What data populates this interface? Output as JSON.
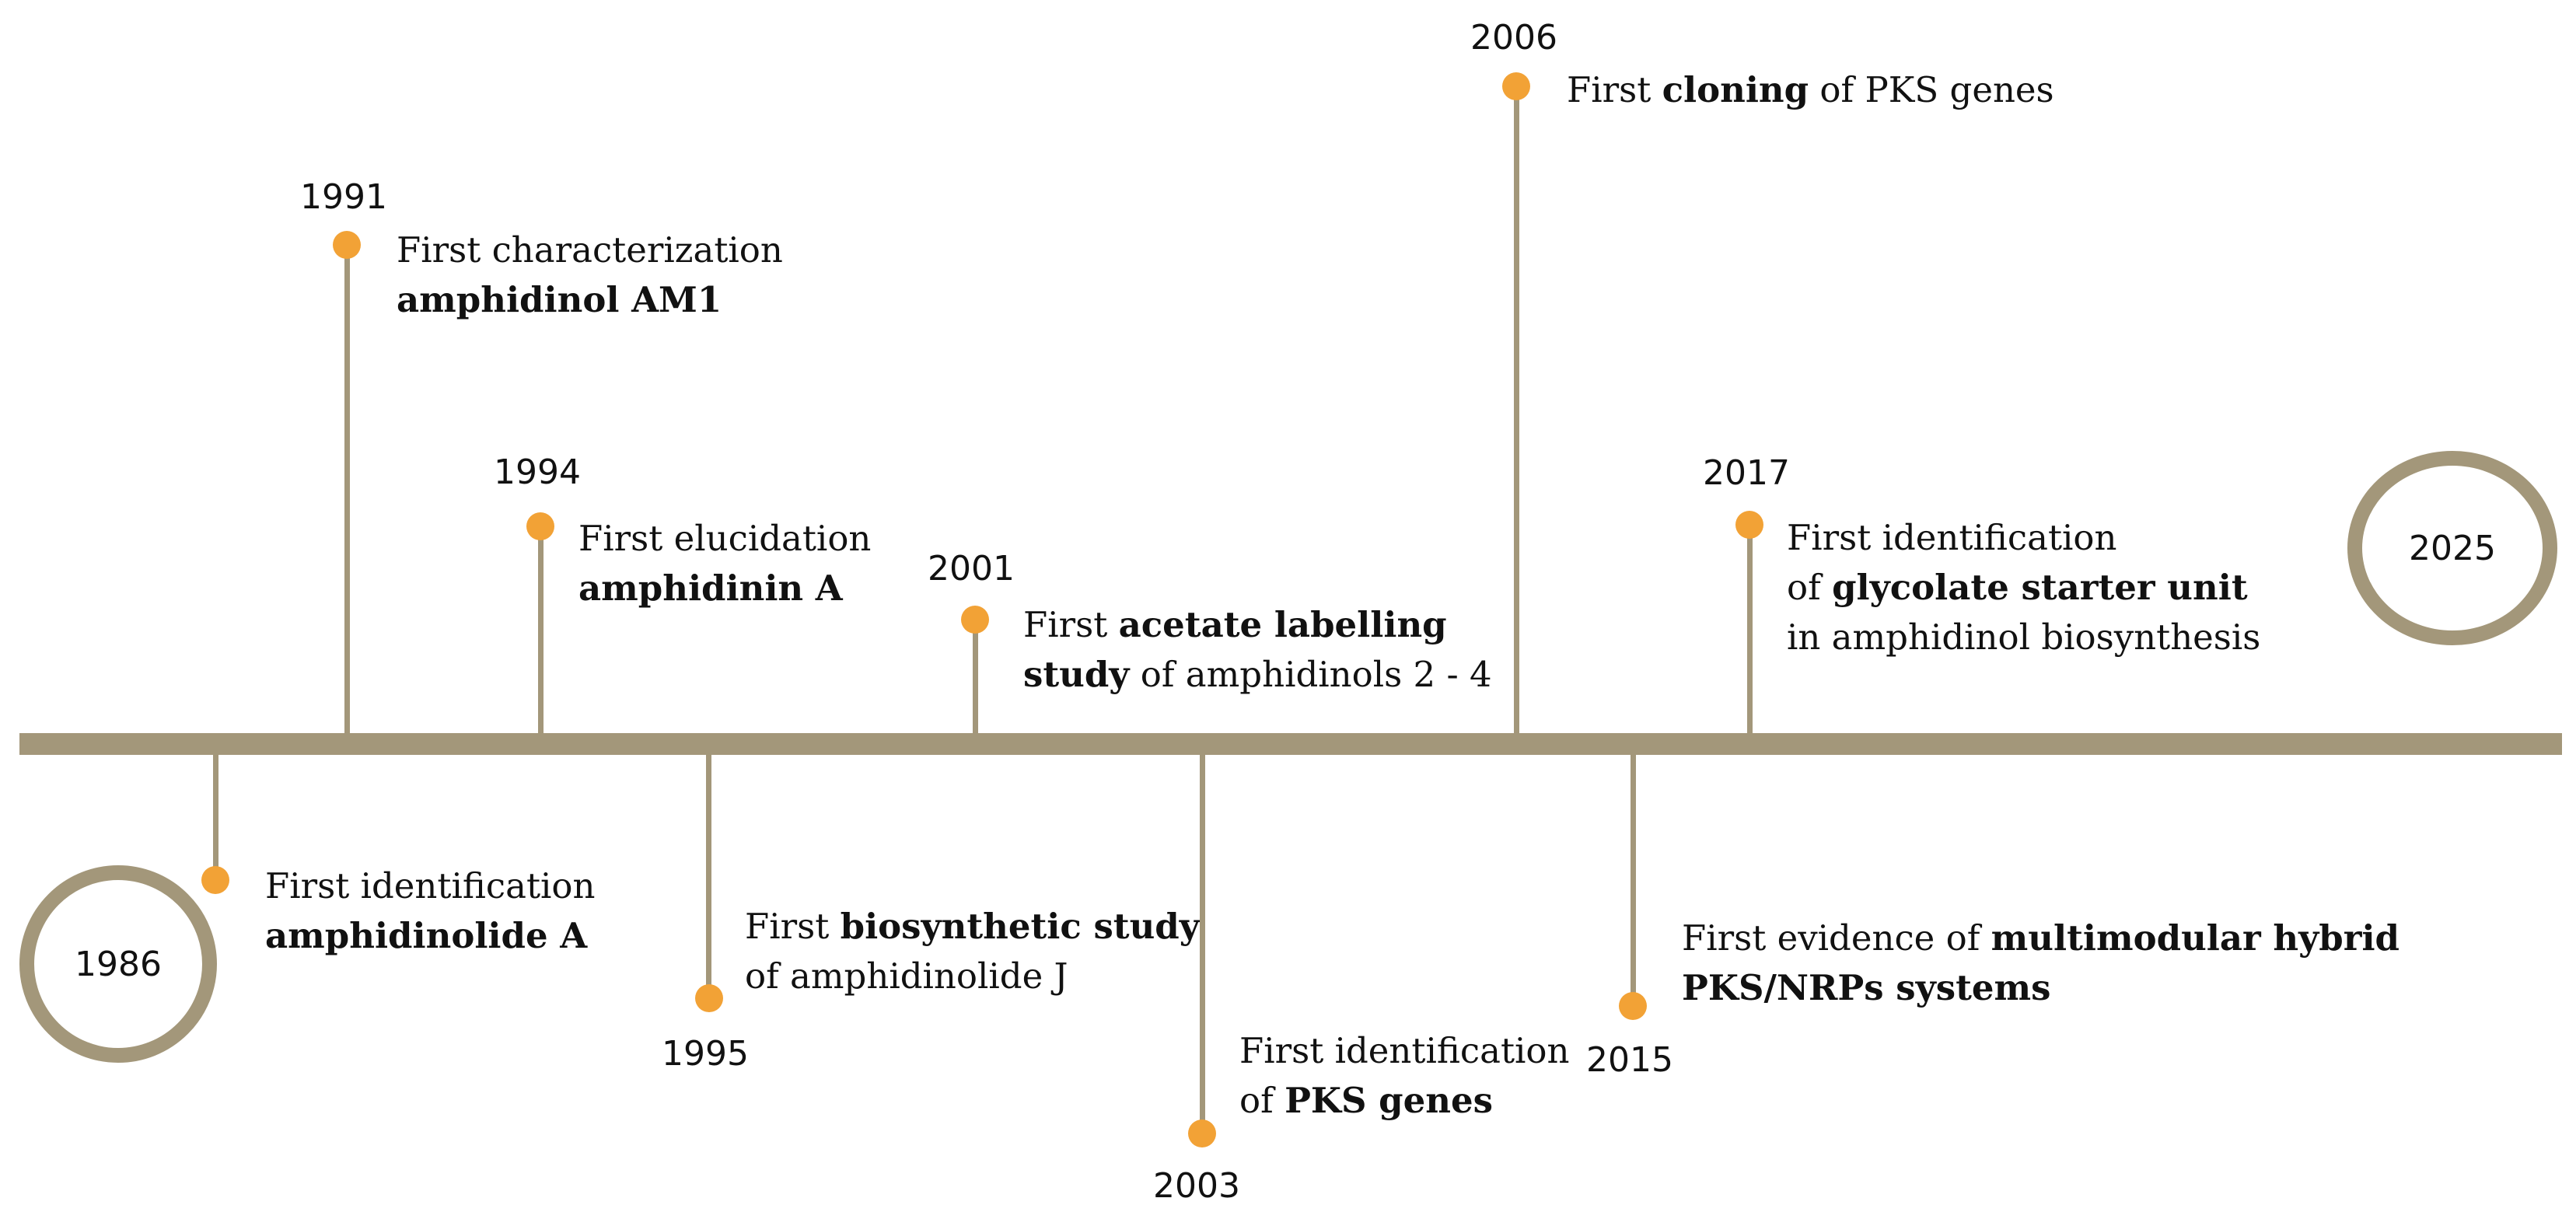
{
  "start_label": "1986",
  "end_label": "2025",
  "events": [
    {
      "id": "1986",
      "year": "",
      "parts": [
        [
          {
            "t": "First identification",
            "b": false
          }
        ],
        [
          {
            "t": "amphidinolide A",
            "b": true
          }
        ]
      ]
    },
    {
      "id": "1991",
      "year": "1991",
      "parts": [
        [
          {
            "t": "First characterization",
            "b": false
          }
        ],
        [
          {
            "t": "amphidinol AM1",
            "b": true
          }
        ]
      ]
    },
    {
      "id": "1994",
      "year": "1994",
      "parts": [
        [
          {
            "t": "First elucidation",
            "b": false
          }
        ],
        [
          {
            "t": "amphidinin A",
            "b": true
          }
        ]
      ]
    },
    {
      "id": "1995",
      "year": "1995",
      "parts": [
        [
          {
            "t": "First ",
            "b": false
          },
          {
            "t": "biosynthetic study",
            "b": true
          }
        ],
        [
          {
            "t": "of amphidinolide J",
            "b": false
          }
        ]
      ]
    },
    {
      "id": "2001",
      "year": "2001",
      "parts": [
        [
          {
            "t": "First ",
            "b": false
          },
          {
            "t": "acetate labelling",
            "b": true
          }
        ],
        [
          {
            "t": "study",
            "b": true
          },
          {
            "t": " of amphidinols 2 - 4",
            "b": false
          }
        ]
      ]
    },
    {
      "id": "2003",
      "year": "2003",
      "parts": [
        [
          {
            "t": "First identification",
            "b": false
          }
        ],
        [
          {
            "t": "of ",
            "b": false
          },
          {
            "t": "PKS genes",
            "b": true
          }
        ]
      ]
    },
    {
      "id": "2006",
      "year": "2006",
      "parts": [
        [
          {
            "t": "First ",
            "b": false
          },
          {
            "t": "cloning",
            "b": true
          },
          {
            "t": " of PKS genes",
            "b": false
          }
        ]
      ]
    },
    {
      "id": "2015",
      "year": "2015",
      "parts": [
        [
          {
            "t": "First evidence of ",
            "b": false
          },
          {
            "t": "multimodular hybrid",
            "b": true
          }
        ],
        [
          {
            "t": "PKS/NRPs systems",
            "b": true
          }
        ]
      ]
    },
    {
      "id": "2017",
      "year": "2017",
      "parts": [
        [
          {
            "t": "First identification",
            "b": false
          }
        ],
        [
          {
            "t": "of ",
            "b": false
          },
          {
            "t": "glycolate starter unit",
            "b": true
          }
        ],
        [
          {
            "t": "in amphidinol biosynthesis",
            "b": false
          }
        ]
      ]
    }
  ]
}
